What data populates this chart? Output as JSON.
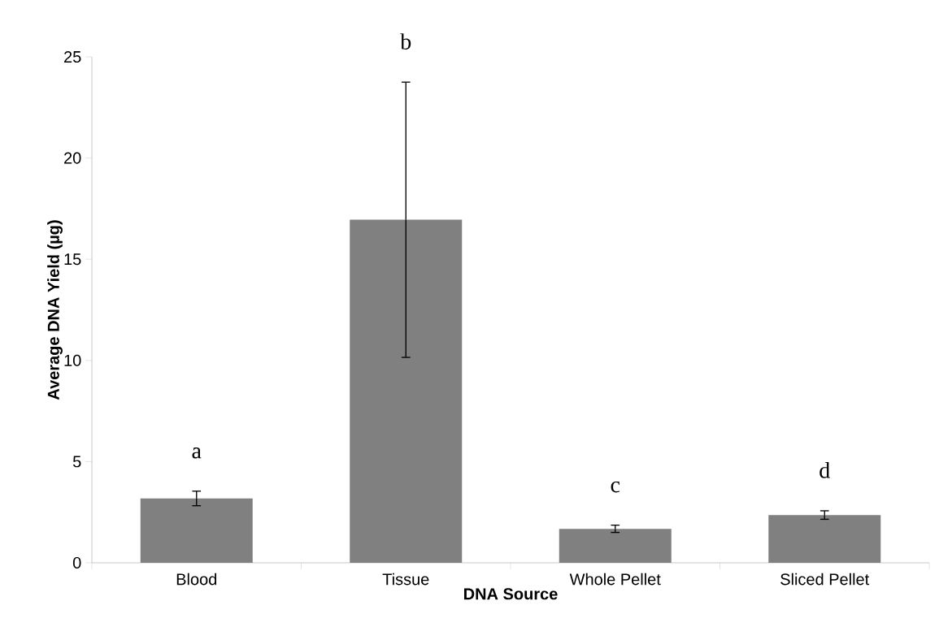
{
  "chart_data": {
    "type": "bar",
    "xlabel": "DNA Source",
    "ylabel": "Average DNA Yield (µg)",
    "categories": [
      "Blood",
      "Tissue",
      "Whole Pellet",
      "Sliced Pellet"
    ],
    "values": [
      3.18,
      16.95,
      1.68,
      2.36
    ],
    "errors": [
      0.36,
      6.8,
      0.18,
      0.21
    ],
    "color": "#808080",
    "ylim": [
      0,
      25
    ],
    "yticks": [
      0,
      5,
      10,
      15,
      20,
      25
    ],
    "grid": false,
    "annotations": [
      "a",
      "b",
      "c",
      "d"
    ]
  }
}
